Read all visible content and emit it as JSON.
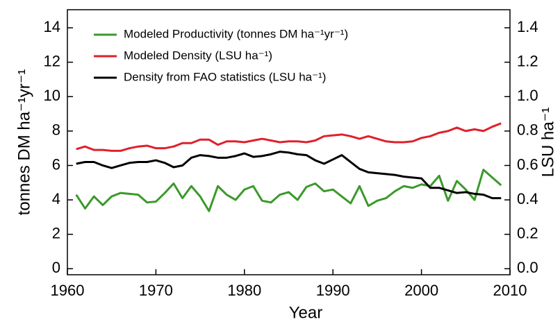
{
  "chart_data": {
    "type": "line",
    "x": [
      1961,
      1962,
      1963,
      1964,
      1965,
      1966,
      1967,
      1968,
      1969,
      1970,
      1971,
      1972,
      1973,
      1974,
      1975,
      1976,
      1977,
      1978,
      1979,
      1980,
      1981,
      1982,
      1983,
      1984,
      1985,
      1986,
      1987,
      1988,
      1989,
      1990,
      1991,
      1992,
      1993,
      1994,
      1995,
      1996,
      1997,
      1998,
      1999,
      2000,
      2001,
      2002,
      2003,
      2004,
      2005,
      2006,
      2007,
      2008,
      2009
    ],
    "series": [
      {
        "name": "Modeled Productivity (tonnes DM ha⁻¹yr⁻¹)",
        "color": "#3a9a2a",
        "values": [
          4.3,
          3.5,
          4.2,
          3.7,
          4.2,
          4.4,
          4.35,
          4.3,
          3.85,
          3.9,
          4.4,
          4.95,
          4.1,
          4.8,
          4.2,
          3.35,
          4.8,
          4.3,
          4.0,
          4.6,
          4.8,
          3.95,
          3.85,
          4.3,
          4.45,
          4.0,
          4.75,
          4.95,
          4.5,
          4.6,
          4.2,
          3.8,
          4.8,
          3.65,
          3.95,
          4.1,
          4.5,
          4.8,
          4.7,
          4.9,
          4.8,
          5.4,
          3.95,
          5.1,
          4.6,
          4.0,
          5.75,
          5.3,
          4.85
        ]
      },
      {
        "name": "Modeled Density (LSU ha⁻¹)",
        "color": "#e0202a",
        "axis": "y2",
        "values": [
          0.695,
          0.71,
          0.69,
          0.69,
          0.685,
          0.685,
          0.7,
          0.71,
          0.715,
          0.7,
          0.7,
          0.71,
          0.73,
          0.73,
          0.75,
          0.75,
          0.72,
          0.74,
          0.74,
          0.735,
          0.745,
          0.755,
          0.745,
          0.735,
          0.74,
          0.74,
          0.735,
          0.745,
          0.77,
          0.775,
          0.78,
          0.77,
          0.755,
          0.77,
          0.755,
          0.74,
          0.735,
          0.735,
          0.74,
          0.76,
          0.77,
          0.79,
          0.8,
          0.82,
          0.8,
          0.81,
          0.8,
          0.825,
          0.845
        ]
      },
      {
        "name": "Density from FAO statistics (LSU ha⁻¹)",
        "color": "#000000",
        "axis": "y2",
        "values": [
          0.61,
          0.62,
          0.62,
          0.6,
          0.585,
          0.6,
          0.615,
          0.62,
          0.62,
          0.63,
          0.615,
          0.59,
          0.6,
          0.645,
          0.66,
          0.655,
          0.645,
          0.645,
          0.655,
          0.67,
          0.65,
          0.655,
          0.665,
          0.68,
          0.675,
          0.665,
          0.66,
          0.63,
          0.61,
          0.635,
          0.66,
          0.62,
          0.58,
          0.56,
          0.555,
          0.55,
          0.545,
          0.535,
          0.53,
          0.525,
          0.47,
          0.47,
          0.455,
          0.44,
          0.445,
          0.435,
          0.43,
          0.41,
          0.41
        ]
      }
    ],
    "xlabel": "Year",
    "ylabel": "tonnes DM ha⁻¹yr⁻¹",
    "y2label": "LSU ha⁻¹",
    "xlim": [
      1960,
      2010
    ],
    "xticks": [
      1960,
      1970,
      1980,
      1990,
      2000,
      2010
    ],
    "ylim": [
      -0.35,
      15.05
    ],
    "yticks": [
      0,
      2,
      4,
      6,
      8,
      10,
      12,
      14
    ],
    "y2lim": [
      -0.035,
      1.505
    ],
    "y2ticks": [
      {
        "value": 0,
        "label": "0.0"
      },
      {
        "value": 0.2,
        "label": "0.2"
      },
      {
        "value": 0.4,
        "label": "0.4"
      },
      {
        "value": 0.6,
        "label": "0.6"
      },
      {
        "value": 0.8,
        "label": "0.8"
      },
      {
        "value": 1,
        "label": "1.0"
      },
      {
        "value": 1.2,
        "label": "1.2"
      },
      {
        "value": 1.4,
        "label": "1.4"
      }
    ],
    "legend": "upper left"
  }
}
